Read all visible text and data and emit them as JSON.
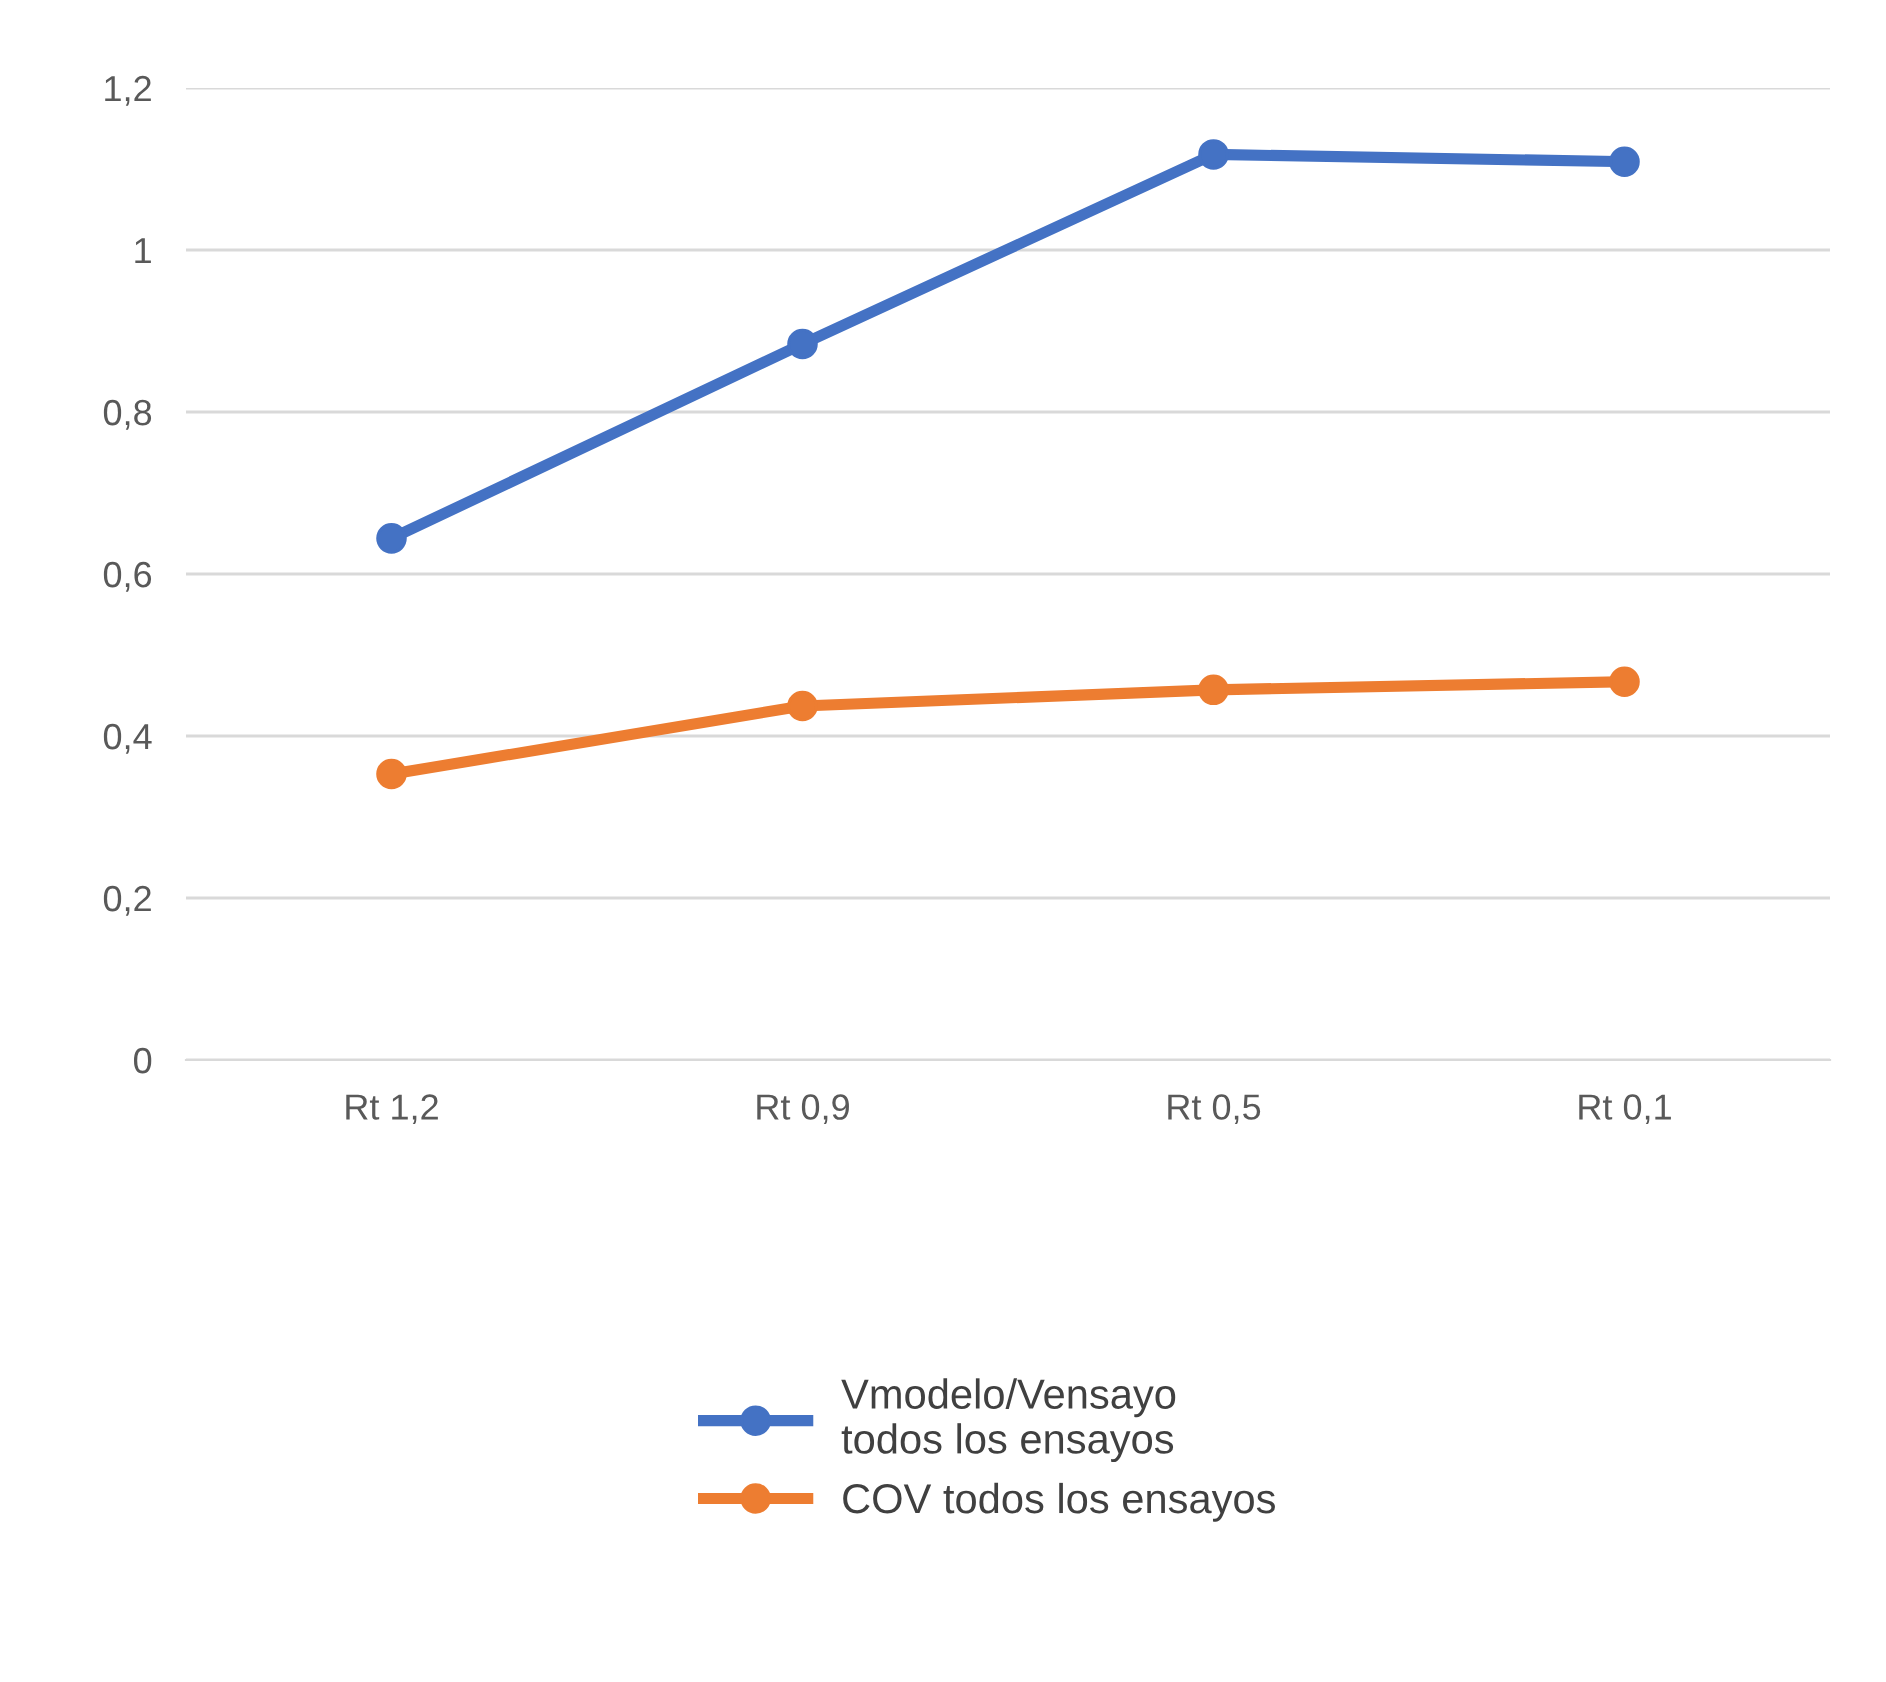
{
  "chart_data": {
    "type": "line",
    "categories": [
      "Rt 1,2",
      "Rt 0,9",
      "Rt 0,5",
      "Rt 0,1"
    ],
    "series": [
      {
        "name": "Vmodelo/Vensayo\ntodos los ensayos",
        "color": "#4472c4",
        "values": [
          0.644,
          0.884,
          1.118,
          1.109
        ]
      },
      {
        "name": "COV todos los ensayos",
        "color": "#ed7d31",
        "values": [
          0.353,
          0.437,
          0.457,
          0.467
        ]
      }
    ],
    "ylim": [
      0,
      1.2
    ],
    "yticks": [
      {
        "value": 0,
        "label": "0"
      },
      {
        "value": 0.2,
        "label": "0,2"
      },
      {
        "value": 0.4,
        "label": "0,4"
      },
      {
        "value": 0.6,
        "label": "0,6"
      },
      {
        "value": 0.8,
        "label": "0,8"
      },
      {
        "value": 1,
        "label": "1"
      },
      {
        "value": 1.2,
        "label": "1,2"
      }
    ],
    "grid": "y",
    "legend": "bottom",
    "marker": "circle",
    "line_style": "solid"
  }
}
